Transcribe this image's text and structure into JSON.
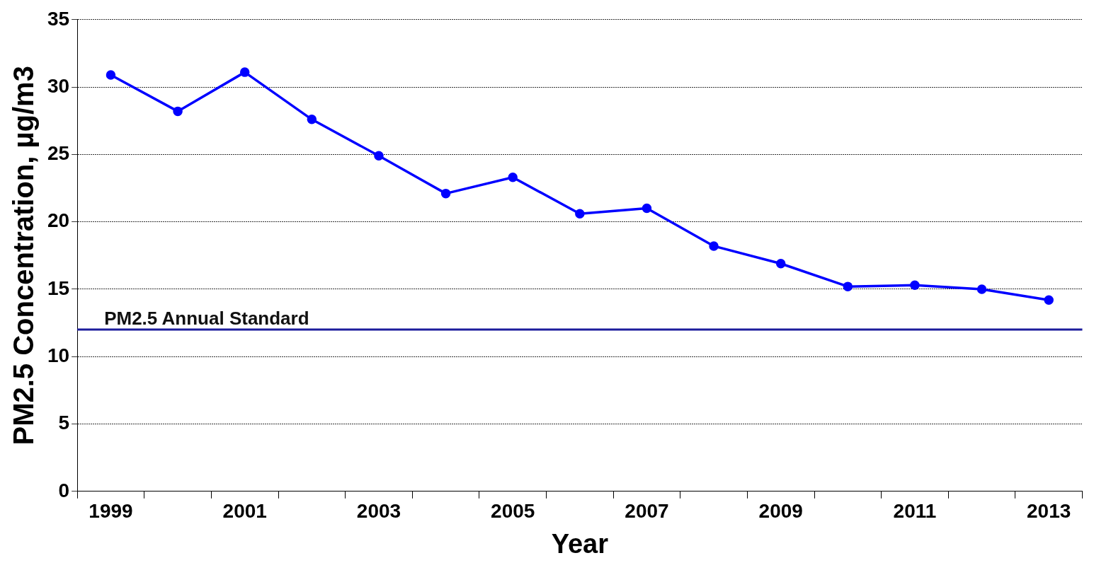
{
  "chart_data": {
    "type": "line",
    "xlabel": "Year",
    "ylabel": "PM2.5 Concentration, µg/m3",
    "categories": [
      "1999",
      null,
      "2001",
      null,
      "2003",
      null,
      "2005",
      null,
      "2007",
      null,
      "2009",
      null,
      "2011",
      null,
      "2013"
    ],
    "series": [
      {
        "color": "#0000ff",
        "values": [
          30.9,
          28.2,
          31.1,
          27.6,
          24.9,
          22.1,
          23.3,
          20.6,
          21.0,
          18.2,
          16.9,
          15.2,
          15.3,
          15.0,
          14.2
        ]
      }
    ],
    "ylim": [
      0,
      35
    ],
    "yticks": [
      0,
      5,
      10,
      15,
      20,
      25,
      30,
      35
    ],
    "grid": "y",
    "legend": false,
    "marker": "circle",
    "line_style": "solid",
    "ref_lines": [
      {
        "axis": "y",
        "value": 12,
        "label": "PM2.5 Annual Standard",
        "color": "#1c1c9c"
      }
    ]
  }
}
